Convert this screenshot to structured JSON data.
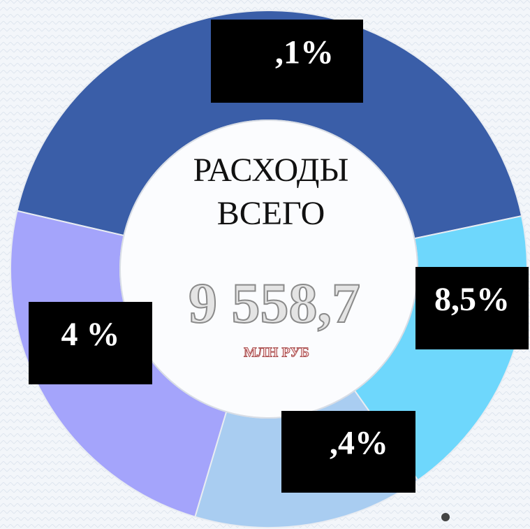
{
  "chart_data": {
    "type": "donut",
    "title": "РАСХОДЫ ВСЕГО",
    "title_lines": [
      "РАСХОДЫ",
      "ВСЕГО"
    ],
    "total": "9 558,7",
    "unit": "МЛН РУБ",
    "categories": [
      null,
      null,
      null,
      null
    ],
    "values": [
      43.1,
      18.5,
      14.4,
      24.0
    ],
    "value_labels": [
      ",1%",
      "8,5%",
      ",4%",
      "4 %"
    ],
    "colors": [
      "#3a5ea8",
      "#6ed7fc",
      "#a9cdf1",
      "#a4a4fb"
    ]
  }
}
